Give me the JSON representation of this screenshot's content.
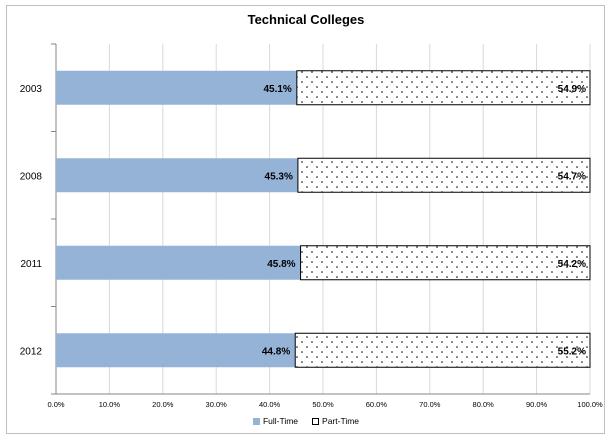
{
  "chart_data": {
    "type": "bar",
    "orientation": "horizontal",
    "stacked": true,
    "title": "Technical Colleges",
    "xlabel": "",
    "ylabel": "",
    "xlim": [
      0,
      100
    ],
    "x_tick_labels": [
      "0.0%",
      "10.0%",
      "20.0%",
      "30.0%",
      "40.0%",
      "50.0%",
      "60.0%",
      "70.0%",
      "80.0%",
      "90.0%",
      "100.0%"
    ],
    "categories": [
      "2003",
      "2008",
      "2011",
      "2012"
    ],
    "series": [
      {
        "name": "Full-Time",
        "values": [
          45.1,
          45.3,
          45.8,
          44.8
        ],
        "labels": [
          "45.1%",
          "45.3%",
          "45.8%",
          "44.8%"
        ],
        "color": "#95b3d7"
      },
      {
        "name": "Part-Time",
        "values": [
          54.9,
          54.7,
          54.2,
          55.2
        ],
        "labels": [
          "54.9%",
          "54.7%",
          "54.2%",
          "55.2%"
        ],
        "color": "#ffffff",
        "pattern": "dotted"
      }
    ],
    "grid": "vertical",
    "legend_position": "bottom"
  }
}
